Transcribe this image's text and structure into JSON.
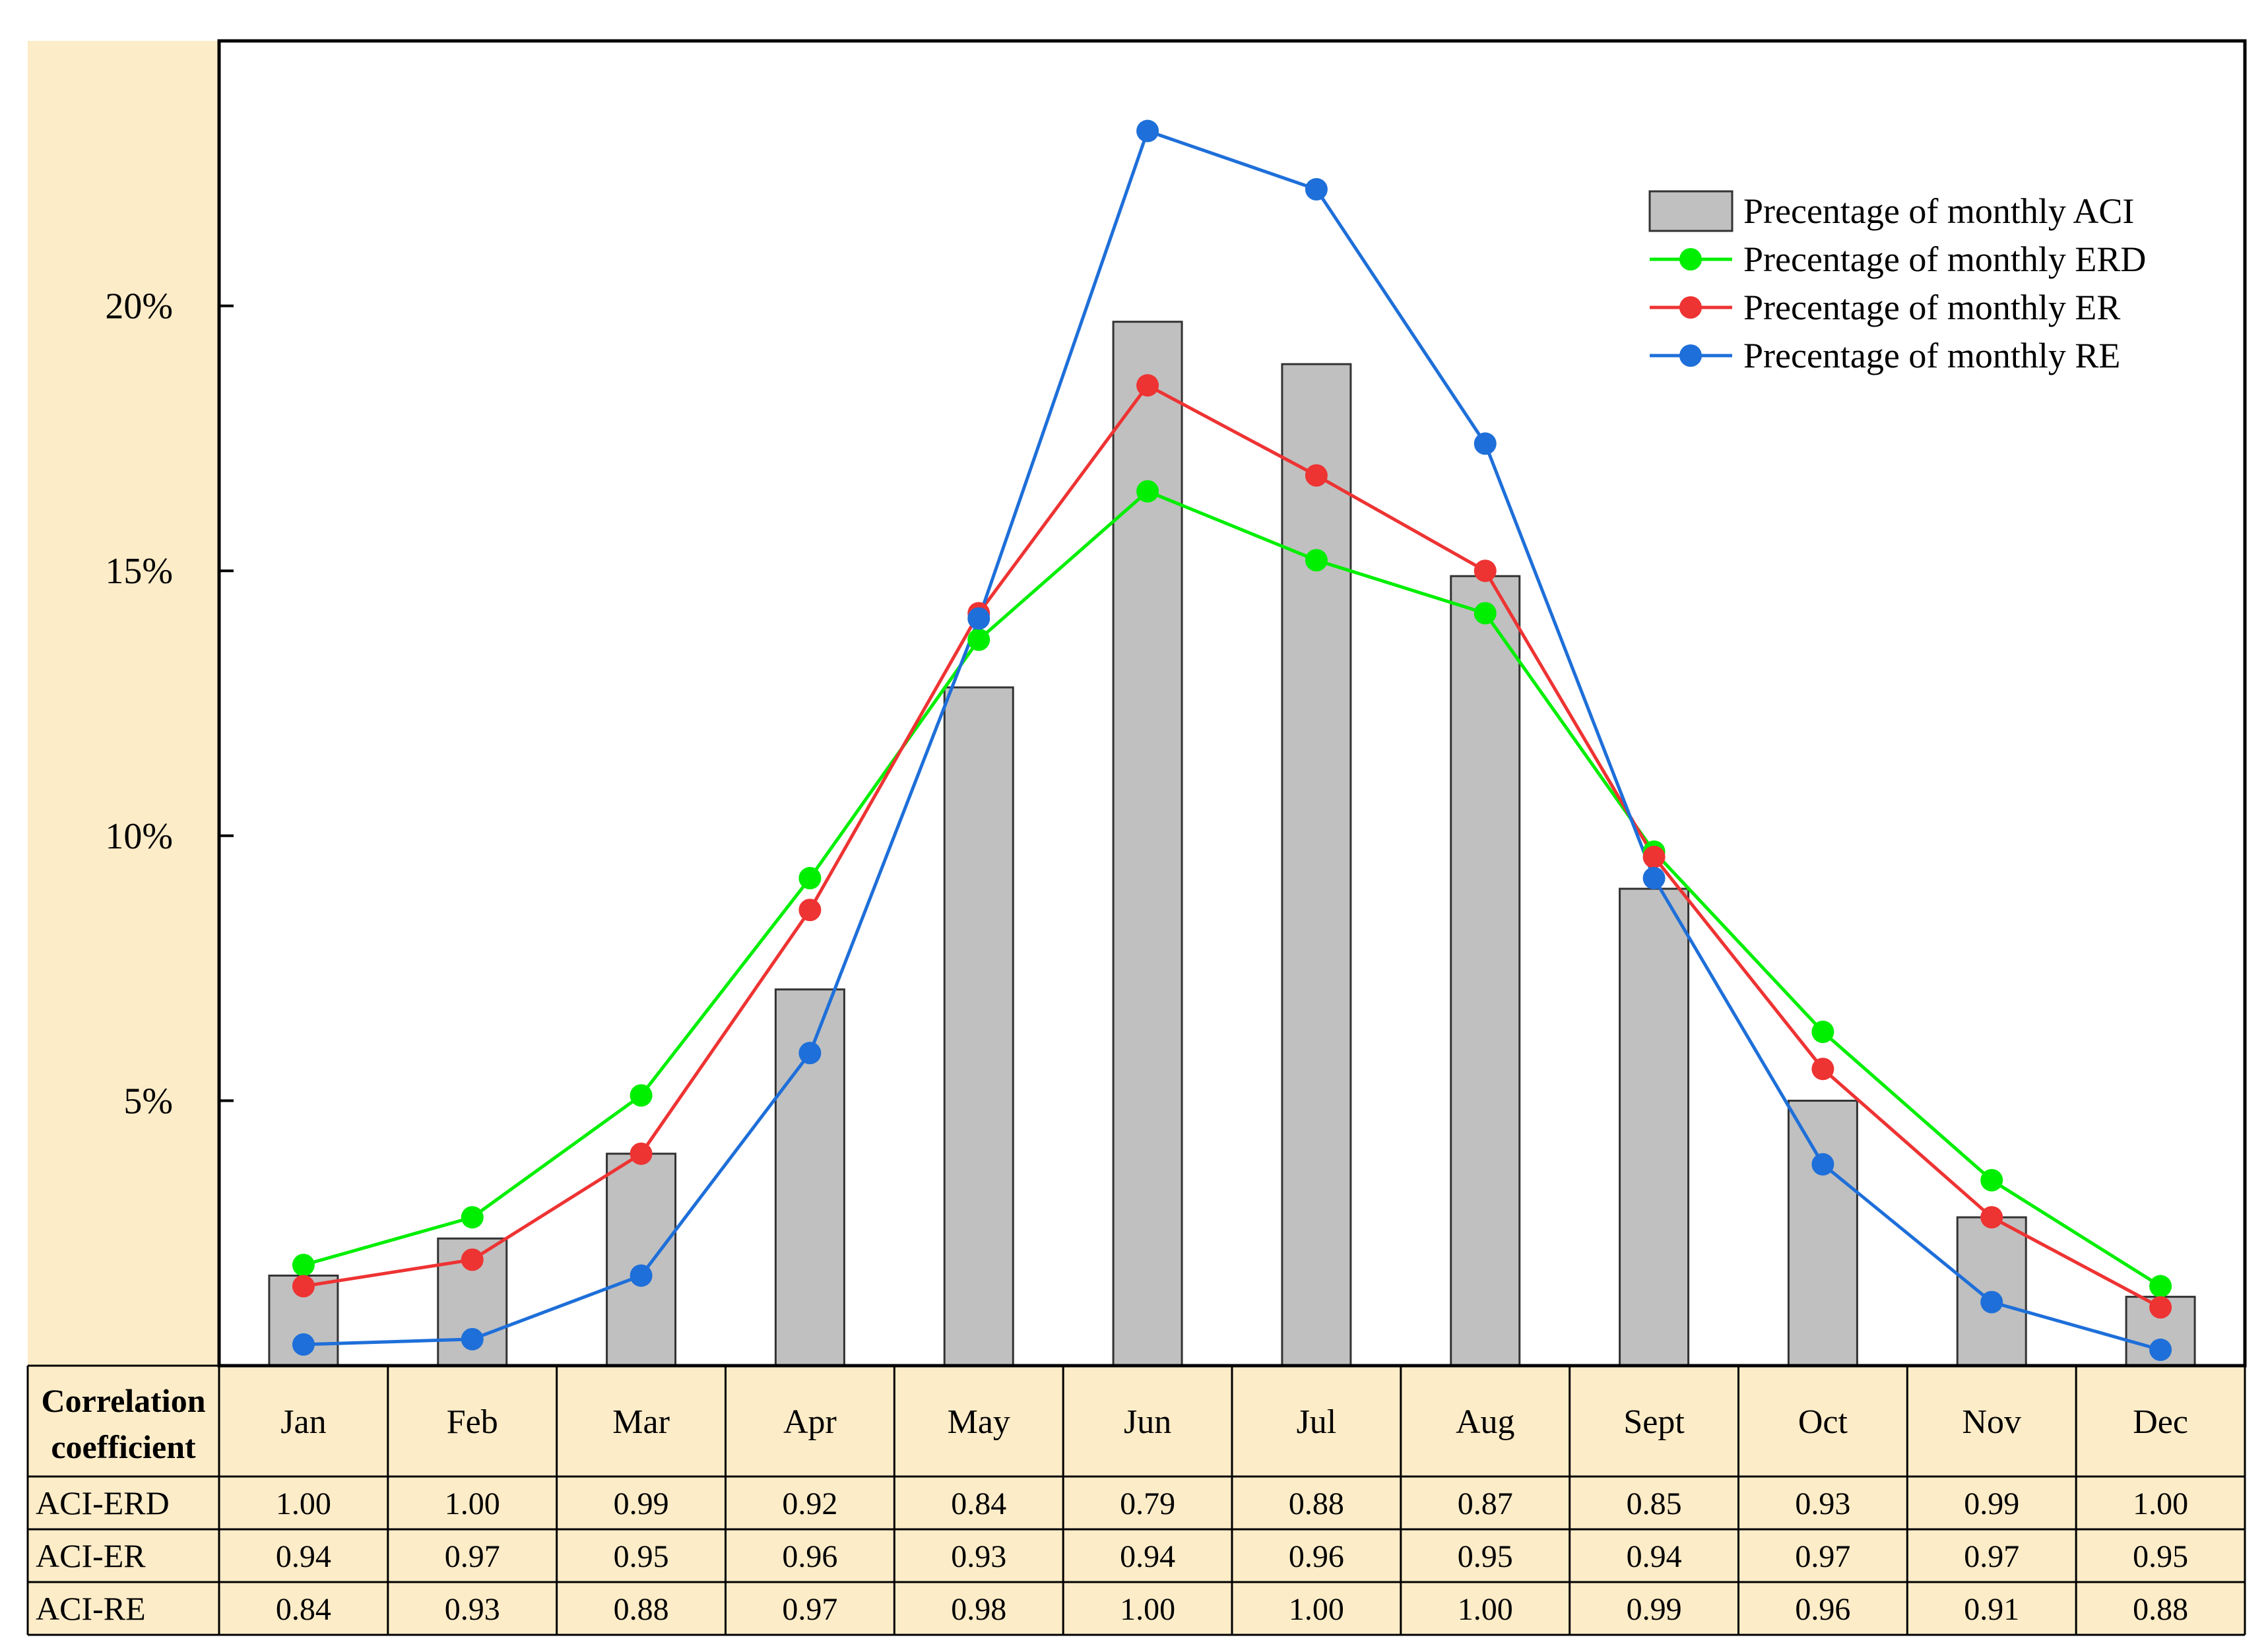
{
  "chart_data": {
    "type": "bar",
    "categories": [
      "Jan",
      "Feb",
      "Mar",
      "Apr",
      "May",
      "Jun",
      "Jul",
      "Aug",
      "Sept",
      "Oct",
      "Nov",
      "Dec"
    ],
    "ylim": [
      0,
      25
    ],
    "yticks": [
      5,
      10,
      15,
      20
    ],
    "ytick_labels": [
      "5%",
      "10%",
      "15%",
      "20%"
    ],
    "bar_series": {
      "name": "Precentage of monthly ACI",
      "color": "#c0c0c0",
      "values": [
        1.7,
        2.4,
        4.0,
        7.1,
        12.8,
        19.7,
        18.9,
        14.9,
        9.0,
        5.0,
        2.8,
        1.3
      ]
    },
    "line_series": [
      {
        "name": "Precentage of monthly ERD",
        "color": "#00ee00",
        "values": [
          1.9,
          2.8,
          5.1,
          9.2,
          13.7,
          16.5,
          15.2,
          14.2,
          9.7,
          6.3,
          3.5,
          1.5
        ]
      },
      {
        "name": "Precentage of monthly ER",
        "color": "#ee3333",
        "values": [
          1.5,
          2.0,
          4.0,
          8.6,
          14.2,
          18.5,
          16.8,
          15.0,
          9.6,
          5.6,
          2.8,
          1.1
        ]
      },
      {
        "name": "Precentage of monthly RE",
        "color": "#1e6fd9",
        "values": [
          0.4,
          0.5,
          1.7,
          5.9,
          14.1,
          23.3,
          22.2,
          17.4,
          9.2,
          3.8,
          1.2,
          0.3
        ]
      }
    ],
    "table": {
      "corner_label_line1": "Correlation",
      "corner_label_line2": "coefficient",
      "rows": [
        {
          "label": "ACI-ERD",
          "values": [
            "1.00",
            "1.00",
            "0.99",
            "0.92",
            "0.84",
            "0.79",
            "0.88",
            "0.87",
            "0.85",
            "0.93",
            "0.99",
            "1.00"
          ]
        },
        {
          "label": "ACI-ER",
          "values": [
            "0.94",
            "0.97",
            "0.95",
            "0.96",
            "0.93",
            "0.94",
            "0.96",
            "0.95",
            "0.94",
            "0.97",
            "0.97",
            "0.95"
          ]
        },
        {
          "label": "ACI-RE",
          "values": [
            "0.84",
            "0.93",
            "0.88",
            "0.97",
            "0.98",
            "1.00",
            "1.00",
            "1.00",
            "0.99",
            "0.96",
            "0.91",
            "0.88"
          ]
        }
      ]
    }
  },
  "colors": {
    "panel_background": "#fdecc8",
    "grid_line": "#000000"
  }
}
